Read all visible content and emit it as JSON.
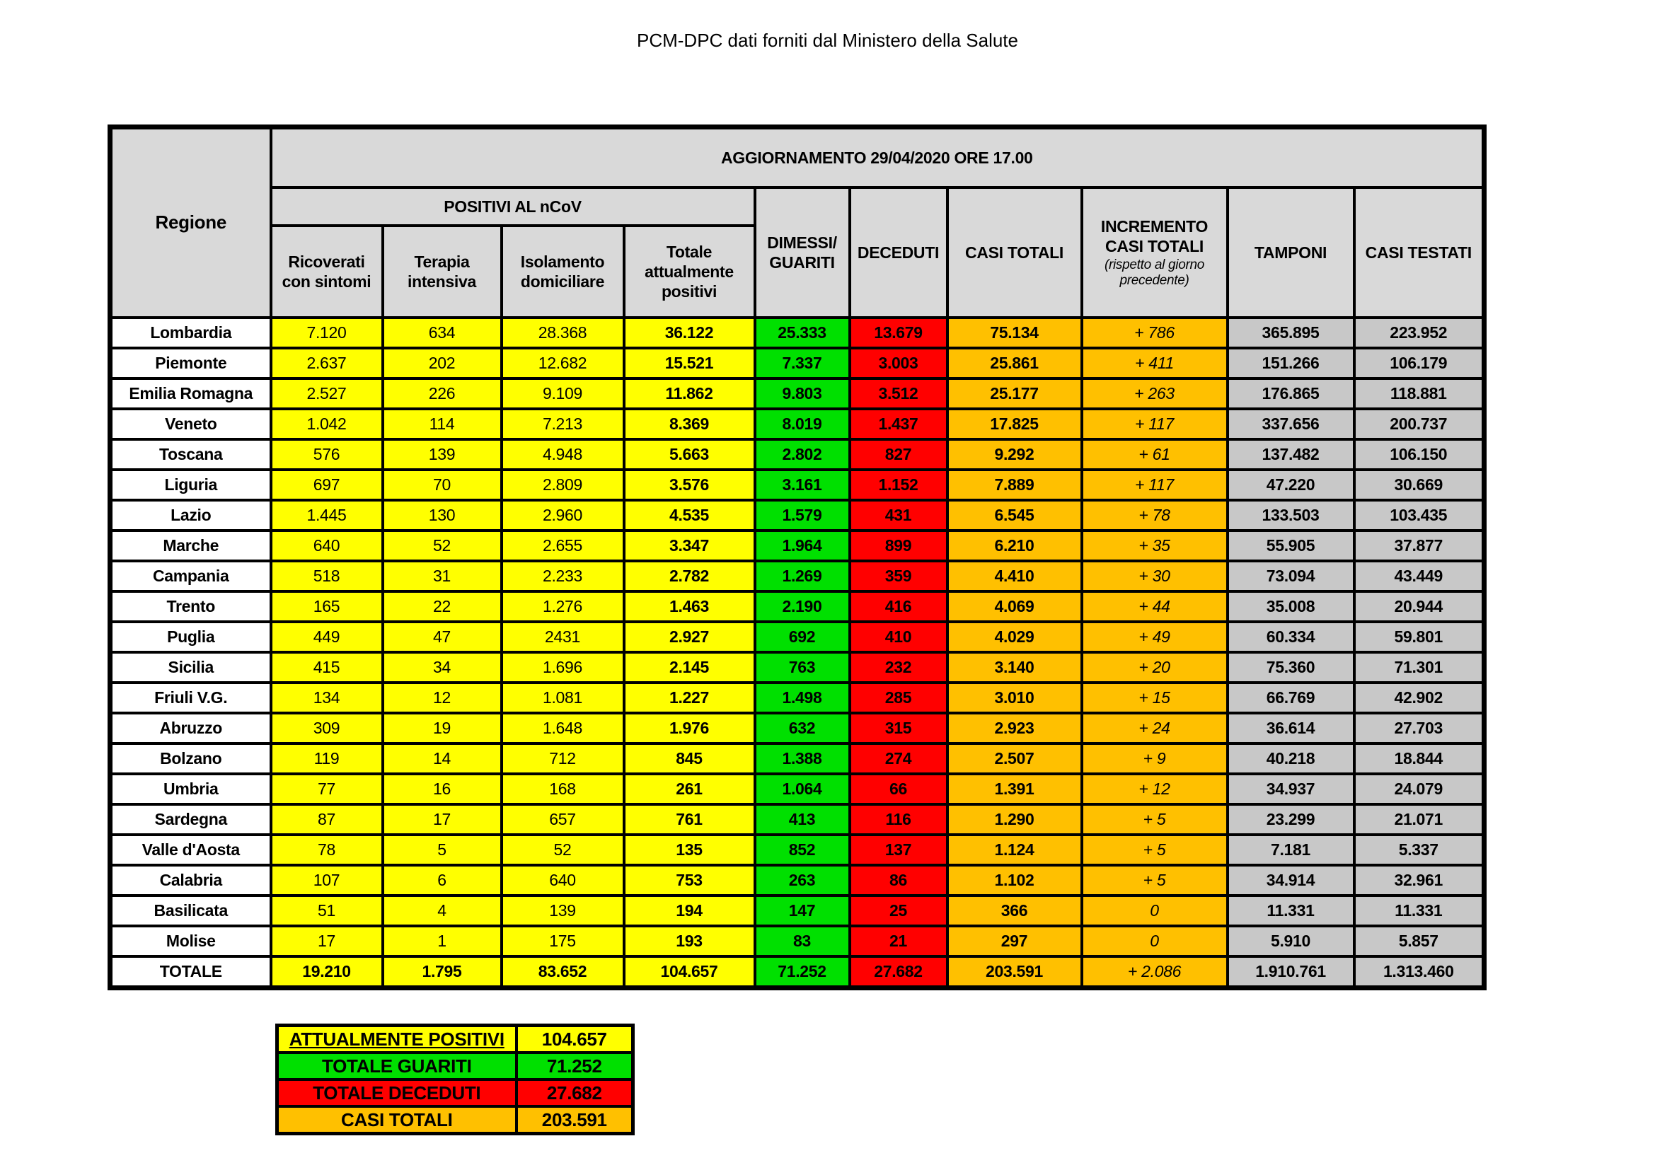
{
  "title": "PCM-DPC dati forniti dal Ministero della Salute",
  "chart_data": {
    "type": "table",
    "update_banner": "AGGIORNAMENTO 29/04/2020 ORE 17.00",
    "group_header": "POSITIVI AL nCoV",
    "incremento_note": "(rispetto al giorno precedente)",
    "columns": [
      "Regione",
      "Ricoverati con sintomi",
      "Terapia intensiva",
      "Isolamento domiciliare",
      "Totale attualmente positivi",
      "DIMESSI/ GUARITI",
      "DECEDUTI",
      "CASI TOTALI",
      "INCREMENTO CASI TOTALI",
      "TAMPONI",
      "CASI TESTATI"
    ],
    "rows": [
      [
        "Lombardia",
        "7.120",
        "634",
        "28.368",
        "36.122",
        "25.333",
        "13.679",
        "75.134",
        "+ 786",
        "365.895",
        "223.952"
      ],
      [
        "Piemonte",
        "2.637",
        "202",
        "12.682",
        "15.521",
        "7.337",
        "3.003",
        "25.861",
        "+ 411",
        "151.266",
        "106.179"
      ],
      [
        "Emilia Romagna",
        "2.527",
        "226",
        "9.109",
        "11.862",
        "9.803",
        "3.512",
        "25.177",
        "+ 263",
        "176.865",
        "118.881"
      ],
      [
        "Veneto",
        "1.042",
        "114",
        "7.213",
        "8.369",
        "8.019",
        "1.437",
        "17.825",
        "+ 117",
        "337.656",
        "200.737"
      ],
      [
        "Toscana",
        "576",
        "139",
        "4.948",
        "5.663",
        "2.802",
        "827",
        "9.292",
        "+ 61",
        "137.482",
        "106.150"
      ],
      [
        "Liguria",
        "697",
        "70",
        "2.809",
        "3.576",
        "3.161",
        "1.152",
        "7.889",
        "+ 117",
        "47.220",
        "30.669"
      ],
      [
        "Lazio",
        "1.445",
        "130",
        "2.960",
        "4.535",
        "1.579",
        "431",
        "6.545",
        "+ 78",
        "133.503",
        "103.435"
      ],
      [
        "Marche",
        "640",
        "52",
        "2.655",
        "3.347",
        "1.964",
        "899",
        "6.210",
        "+ 35",
        "55.905",
        "37.877"
      ],
      [
        "Campania",
        "518",
        "31",
        "2.233",
        "2.782",
        "1.269",
        "359",
        "4.410",
        "+ 30",
        "73.094",
        "43.449"
      ],
      [
        "Trento",
        "165",
        "22",
        "1.276",
        "1.463",
        "2.190",
        "416",
        "4.069",
        "+ 44",
        "35.008",
        "20.944"
      ],
      [
        "Puglia",
        "449",
        "47",
        "2431",
        "2.927",
        "692",
        "410",
        "4.029",
        "+ 49",
        "60.334",
        "59.801"
      ],
      [
        "Sicilia",
        "415",
        "34",
        "1.696",
        "2.145",
        "763",
        "232",
        "3.140",
        "+ 20",
        "75.360",
        "71.301"
      ],
      [
        "Friuli V.G.",
        "134",
        "12",
        "1.081",
        "1.227",
        "1.498",
        "285",
        "3.010",
        "+ 15",
        "66.769",
        "42.902"
      ],
      [
        "Abruzzo",
        "309",
        "19",
        "1.648",
        "1.976",
        "632",
        "315",
        "2.923",
        "+ 24",
        "36.614",
        "27.703"
      ],
      [
        "Bolzano",
        "119",
        "14",
        "712",
        "845",
        "1.388",
        "274",
        "2.507",
        "+ 9",
        "40.218",
        "18.844"
      ],
      [
        "Umbria",
        "77",
        "16",
        "168",
        "261",
        "1.064",
        "66",
        "1.391",
        "+ 12",
        "34.937",
        "24.079"
      ],
      [
        "Sardegna",
        "87",
        "17",
        "657",
        "761",
        "413",
        "116",
        "1.290",
        "+ 5",
        "23.299",
        "21.071"
      ],
      [
        "Valle d'Aosta",
        "78",
        "5",
        "52",
        "135",
        "852",
        "137",
        "1.124",
        "+ 5",
        "7.181",
        "5.337"
      ],
      [
        "Calabria",
        "107",
        "6",
        "640",
        "753",
        "263",
        "86",
        "1.102",
        "+ 5",
        "34.914",
        "32.961"
      ],
      [
        "Basilicata",
        "51",
        "4",
        "139",
        "194",
        "147",
        "25",
        "366",
        "0",
        "11.331",
        "11.331"
      ],
      [
        "Molise",
        "17",
        "1",
        "175",
        "193",
        "83",
        "21",
        "297",
        "0",
        "5.910",
        "5.857"
      ]
    ],
    "total": [
      "TOTALE",
      "19.210",
      "1.795",
      "83.652",
      "104.657",
      "71.252",
      "27.682",
      "203.591",
      "+ 2.086",
      "1.910.761",
      "1.313.460"
    ]
  },
  "summary": {
    "rows": [
      {
        "label": "ATTUALMENTE POSITIVI",
        "value": "104.657",
        "color": "yellow",
        "underline": true
      },
      {
        "label": "TOTALE GUARITI",
        "value": "71.252",
        "color": "green",
        "underline": false
      },
      {
        "label": "TOTALE DECEDUTI",
        "value": "27.682",
        "color": "red",
        "underline": false
      },
      {
        "label": "CASI TOTALI",
        "value": "203.591",
        "color": "orange",
        "underline": false
      }
    ]
  },
  "colors": {
    "yellow": "#ffff00",
    "green": "#00e000",
    "red": "#ff0000",
    "orange": "#ffc000",
    "header-gray": "#d9d9d9",
    "cell-gray": "#c8c8c8",
    "border": "#000000"
  }
}
